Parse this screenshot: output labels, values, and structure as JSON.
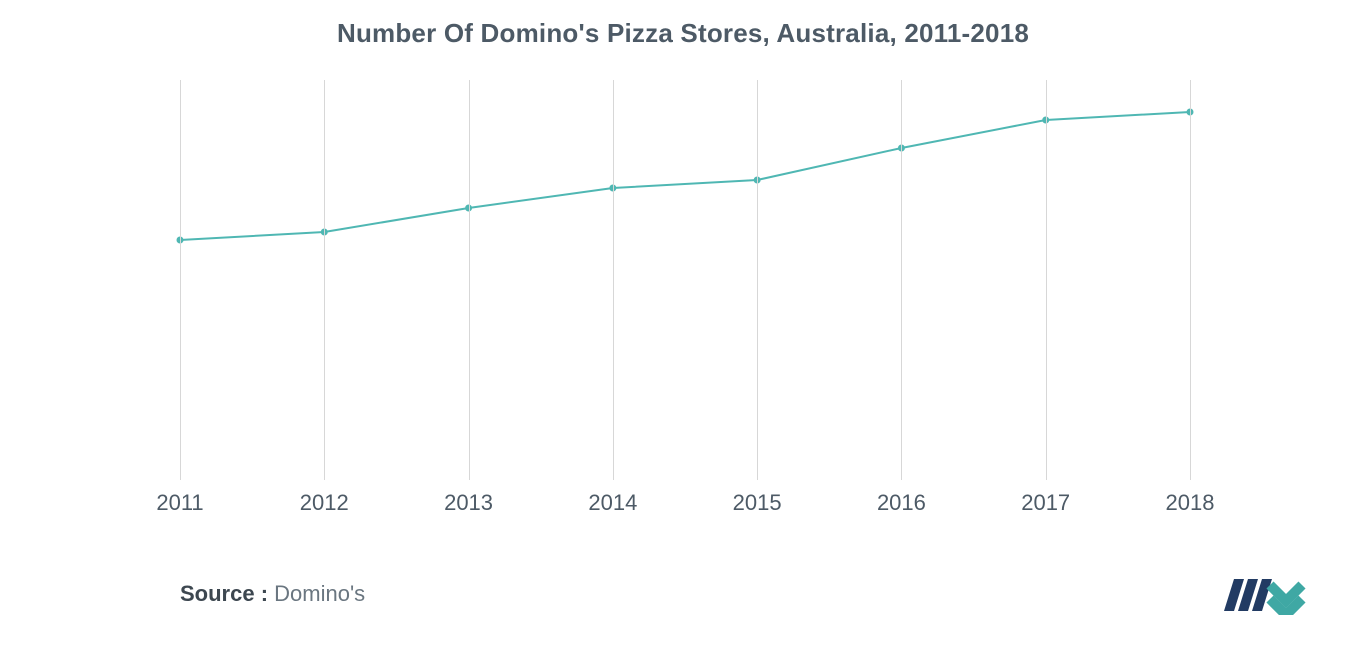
{
  "chart": {
    "type": "line",
    "title": "Number Of Domino's Pizza Stores, Australia, 2011-2018",
    "title_fontsize": 26,
    "title_color": "#4d5a66",
    "background_color": "#ffffff",
    "grid_color": "#d7d7d7",
    "x": {
      "categories": [
        "2011",
        "2012",
        "2013",
        "2014",
        "2015",
        "2016",
        "2017",
        "2018"
      ],
      "tick_fontsize": 22,
      "tick_color": "#4d5a66"
    },
    "y": {
      "min": 0,
      "max": 100,
      "show_axis": false
    },
    "series": {
      "name": "stores",
      "values": [
        60,
        62,
        68,
        73,
        75,
        83,
        90,
        92
      ],
      "line_color": "#4fb7b3",
      "line_width": 2,
      "marker_color": "#4fb7b3",
      "marker_radius": 3.5
    }
  },
  "source": {
    "label": "Source :",
    "value": "Domino's",
    "fontsize": 22,
    "label_color": "#3d4750",
    "value_color": "#6a7680"
  },
  "logo": {
    "bar_color": "#223b63",
    "chevron_color": "#3fa8a4"
  }
}
